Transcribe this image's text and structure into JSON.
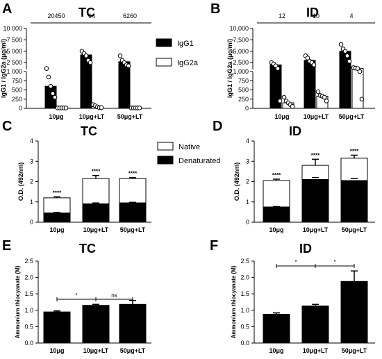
{
  "panels": {
    "A": {
      "label": "A",
      "title": "TC"
    },
    "B": {
      "label": "B",
      "title": "ID"
    },
    "C": {
      "label": "C",
      "title": "TC"
    },
    "D": {
      "label": "D",
      "title": "ID"
    },
    "E": {
      "label": "E",
      "title": "TC"
    },
    "F": {
      "label": "F",
      "title": "ID"
    }
  },
  "legend_ab": {
    "igg1": "IgG1",
    "igg2a": "IgG2a"
  },
  "legend_cd": {
    "native": "Native",
    "denat": "Denaturated"
  },
  "chart_data": [
    {
      "id": "A",
      "type": "bar",
      "title": "TC",
      "ylabel": "IgG1 / IgG2a (μg/ml)",
      "categories": [
        "10μg",
        "10μg+LT",
        "50μg+LT"
      ],
      "y_axis": "segmented",
      "y_segments": [
        [
          0,
          1000
        ],
        [
          1000,
          10000
        ]
      ],
      "yticks": [
        "0",
        "250",
        "500",
        "750",
        "1 000",
        "2 500",
        "5 000",
        "7 500",
        "10 000"
      ],
      "ratio_labels": [
        "20450",
        "64",
        "6260"
      ],
      "series": [
        {
          "name": "IgG1",
          "fill": "#000000",
          "values": [
            600,
            4200,
            2700
          ],
          "points": [
            [
              1200,
              850,
              600,
              400,
              300
            ],
            [
              5000,
              4500,
              4000,
              3000,
              2500
            ],
            [
              4000,
              3000,
              2500,
              2000,
              1800
            ]
          ]
        },
        {
          "name": "IgG2a",
          "fill": "#ffffff",
          "values": [
            10,
            50,
            10
          ],
          "points": [
            [
              10,
              10,
              10,
              10,
              10
            ],
            [
              100,
              70,
              40,
              20,
              20
            ],
            [
              10,
              10,
              10,
              10,
              10
            ]
          ]
        }
      ]
    },
    {
      "id": "B",
      "type": "bar",
      "title": "ID",
      "ylabel": "IgG1 / IgG2a (μg/ml)",
      "categories": [
        "10μg",
        "10μg+LT",
        "50μg+LT"
      ],
      "y_axis": "segmented",
      "y_segments": [
        [
          0,
          1000
        ],
        [
          1000,
          10000
        ]
      ],
      "yticks": [
        "0",
        "250",
        "500",
        "750",
        "1,000",
        "2,500",
        "5,000",
        "7,500",
        "10,000"
      ],
      "ratio_labels": [
        "12",
        "10",
        "4"
      ],
      "series": [
        {
          "name": "IgG1",
          "fill": "#000000",
          "values": [
            2000,
            3000,
            5000
          ],
          "points": [
            [
              2500,
              2200,
              1800,
              1200,
              200
            ],
            [
              4000,
              3500,
              2800,
              2500,
              2000
            ],
            [
              6500,
              5500,
              5000,
              4000,
              2800
            ]
          ]
        },
        {
          "name": "IgG2a",
          "fill": "#ffffff",
          "values": [
            150,
            330,
            1200
          ],
          "points": [
            [
              300,
              200,
              150,
              100,
              50
            ],
            [
              450,
              350,
              330,
              300,
              200
            ],
            [
              1400,
              1300,
              1200,
              1000,
              250
            ]
          ]
        }
      ]
    },
    {
      "id": "C",
      "type": "bar",
      "stacked": true,
      "title": "TC",
      "ylabel": "O.D. (492nm)",
      "ylim": [
        0,
        4
      ],
      "yticks": [
        0,
        1,
        2,
        3,
        4
      ],
      "categories": [
        "10μg",
        "10μg+LT",
        "50μg+LT"
      ],
      "series": [
        {
          "name": "Denaturated",
          "fill": "#000000",
          "values": [
            0.45,
            0.9,
            0.95
          ]
        },
        {
          "name": "Native",
          "fill": "#ffffff",
          "values": [
            0.75,
            1.25,
            1.2
          ]
        }
      ],
      "total_error": [
        0.05,
        0.15,
        0.05
      ],
      "bottom_error": [
        0.03,
        0.05,
        0.03
      ],
      "annotations": [
        "****",
        "****",
        "****"
      ]
    },
    {
      "id": "D",
      "type": "bar",
      "stacked": true,
      "title": "ID",
      "ylabel": "O.D. (492nm)",
      "ylim": [
        0,
        4
      ],
      "yticks": [
        0,
        1,
        2,
        3,
        4
      ],
      "categories": [
        "10μg",
        "10μg+LT",
        "50μg+LT"
      ],
      "series": [
        {
          "name": "Denaturated",
          "fill": "#000000",
          "values": [
            0.75,
            2.1,
            2.05
          ]
        },
        {
          "name": "Native",
          "fill": "#ffffff",
          "values": [
            1.3,
            0.7,
            1.1
          ]
        }
      ],
      "total_error": [
        0.07,
        0.3,
        0.15
      ],
      "bottom_error": [
        0.02,
        0.1,
        0.1
      ],
      "annotations": [
        "****",
        "****",
        "****"
      ]
    },
    {
      "id": "E",
      "type": "bar",
      "title": "TC",
      "ylabel": "Ammonium thiocyanate (M)",
      "ylim": [
        0,
        2.5
      ],
      "yticks": [
        "0.0",
        "0.5",
        "1.0",
        "1.5",
        "2.0",
        "2.5"
      ],
      "categories": [
        "10μg",
        "10μg+LT",
        "50μg+LT"
      ],
      "values": [
        0.95,
        1.15,
        1.18
      ],
      "errors": [
        0.03,
        0.03,
        0.12
      ],
      "significance": [
        {
          "from": 0,
          "to": 1,
          "label": "*"
        },
        {
          "from": 1,
          "to": 2,
          "label": "ns"
        }
      ]
    },
    {
      "id": "F",
      "type": "bar",
      "title": "ID",
      "ylabel": "Ammonium thiocyanate (M)",
      "ylim": [
        0,
        2.5
      ],
      "yticks": [
        "0.0",
        "0.5",
        "1.0",
        "1.5",
        "2.0",
        "2.5"
      ],
      "categories": [
        "10μg",
        "10μg+LT",
        "50μg+LT"
      ],
      "values": [
        0.88,
        1.13,
        1.88
      ],
      "errors": [
        0.04,
        0.05,
        0.32
      ],
      "significance": [
        {
          "from": 0,
          "to": 1,
          "label": "*"
        },
        {
          "from": 1,
          "to": 2,
          "label": "*"
        }
      ]
    }
  ]
}
